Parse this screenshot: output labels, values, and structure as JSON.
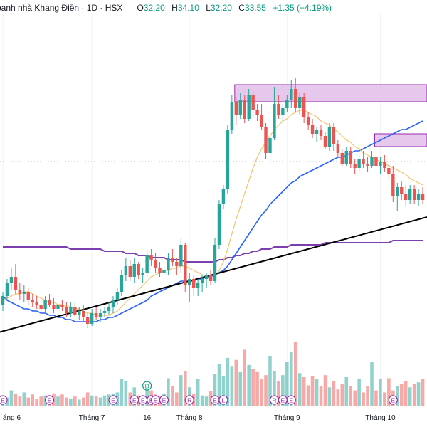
{
  "header": {
    "title": "oanh nhà Khang Điền · 1D · HSX",
    "open_label": "O",
    "open": "32.20",
    "high_label": "H",
    "high": "34.10",
    "low_label": "L",
    "low": "32.20",
    "close_label": "C",
    "close": "33.55",
    "change": "+1.35 (+4.19%)"
  },
  "colors": {
    "up": "#26a69a",
    "down": "#ef5350",
    "ma_short": "#f5c26b",
    "ma_mid": "#2962ff",
    "ma_long": "#7b3fb0",
    "trendline": "#000000",
    "zone": "#e1bee7",
    "zone_border": "#9c27b0"
  },
  "chart_data": {
    "type": "candlestick",
    "title": "oanh nhà Khang Điền · 1D · HSX",
    "ylim": [
      20,
      38
    ],
    "x_tick_labels": [
      {
        "i": 0,
        "label": "áng 6"
      },
      {
        "i": 21,
        "label": "Tháng 7"
      },
      {
        "i": 34,
        "label": "16"
      },
      {
        "i": 44,
        "label": "Tháng 8"
      },
      {
        "i": 67,
        "label": "Tháng 9"
      },
      {
        "i": 89,
        "label": "Tháng 10"
      }
    ],
    "ohlc": [
      [
        24.4,
        25.0,
        24.1,
        24.8
      ],
      [
        24.8,
        25.6,
        24.6,
        25.4
      ],
      [
        25.4,
        26.1,
        25.1,
        25.7
      ],
      [
        25.7,
        26.3,
        24.9,
        25.1
      ],
      [
        25.1,
        25.4,
        24.6,
        24.9
      ],
      [
        24.9,
        25.3,
        24.5,
        25.0
      ],
      [
        25.0,
        25.2,
        24.4,
        24.6
      ],
      [
        24.6,
        24.9,
        24.3,
        24.5
      ],
      [
        24.5,
        24.8,
        24.2,
        24.4
      ],
      [
        24.4,
        24.6,
        24.1,
        24.2
      ],
      [
        24.2,
        24.8,
        24.0,
        24.6
      ],
      [
        24.6,
        24.9,
        24.3,
        24.4
      ],
      [
        24.4,
        24.7,
        24.0,
        24.2
      ],
      [
        24.2,
        24.5,
        23.9,
        24.4
      ],
      [
        24.4,
        24.6,
        24.1,
        24.3
      ],
      [
        24.3,
        24.5,
        23.8,
        24.0
      ],
      [
        24.0,
        24.5,
        23.8,
        24.3
      ],
      [
        24.3,
        24.5,
        23.8,
        23.9
      ],
      [
        23.9,
        24.3,
        23.7,
        24.1
      ],
      [
        24.1,
        24.4,
        23.6,
        23.8
      ],
      [
        23.8,
        24.0,
        23.3,
        23.5
      ],
      [
        23.5,
        24.2,
        23.4,
        24.0
      ],
      [
        24.0,
        24.3,
        23.7,
        23.8
      ],
      [
        23.8,
        24.2,
        23.6,
        24.0
      ],
      [
        24.0,
        24.3,
        23.8,
        24.1
      ],
      [
        24.1,
        24.5,
        23.9,
        24.3
      ],
      [
        24.3,
        24.8,
        24.0,
        24.6
      ],
      [
        24.6,
        25.2,
        24.4,
        25.0
      ],
      [
        25.0,
        26.0,
        24.8,
        25.8
      ],
      [
        25.8,
        26.6,
        25.5,
        26.2
      ],
      [
        26.2,
        26.5,
        25.5,
        25.7
      ],
      [
        25.7,
        26.6,
        25.4,
        26.3
      ],
      [
        26.3,
        26.4,
        25.6,
        25.8
      ],
      [
        25.8,
        26.1,
        25.4,
        25.9
      ],
      [
        25.9,
        26.9,
        25.7,
        26.7
      ],
      [
        26.7,
        27.0,
        26.2,
        26.5
      ],
      [
        26.5,
        26.8,
        25.9,
        26.1
      ],
      [
        26.1,
        26.4,
        25.7,
        25.9
      ],
      [
        25.9,
        26.3,
        25.5,
        26.0
      ],
      [
        26.0,
        26.8,
        25.8,
        26.6
      ],
      [
        26.6,
        27.0,
        26.2,
        26.4
      ],
      [
        26.4,
        26.6,
        25.8,
        26.2
      ],
      [
        26.2,
        27.5,
        25.9,
        27.2
      ],
      [
        27.2,
        27.3,
        25.0,
        25.3
      ],
      [
        25.3,
        25.9,
        24.5,
        25.6
      ],
      [
        25.6,
        25.8,
        24.8,
        25.2
      ],
      [
        25.2,
        25.6,
        24.8,
        25.4
      ],
      [
        25.4,
        25.8,
        25.0,
        25.6
      ],
      [
        25.6,
        25.9,
        25.2,
        25.8
      ],
      [
        25.8,
        26.0,
        25.3,
        25.5
      ],
      [
        25.5,
        27.5,
        25.4,
        27.2
      ],
      [
        27.2,
        29.3,
        27.0,
        29.1
      ],
      [
        29.1,
        30.0,
        28.9,
        29.8
      ],
      [
        29.8,
        32.8,
        29.6,
        32.6
      ],
      [
        32.6,
        34.2,
        32.4,
        33.9
      ],
      [
        33.9,
        34.1,
        32.8,
        33.3
      ],
      [
        33.3,
        34.3,
        33.1,
        34.0
      ],
      [
        34.0,
        34.2,
        32.9,
        33.1
      ],
      [
        33.1,
        34.5,
        33.0,
        34.2
      ],
      [
        34.2,
        34.4,
        33.2,
        33.5
      ],
      [
        33.5,
        33.8,
        33.0,
        33.3
      ],
      [
        33.3,
        33.8,
        32.6,
        32.7
      ],
      [
        32.7,
        32.9,
        31.2,
        31.5
      ],
      [
        31.5,
        32.4,
        31.0,
        32.2
      ],
      [
        32.2,
        34.6,
        32.1,
        33.8
      ],
      [
        33.8,
        34.2,
        33.1,
        33.3
      ],
      [
        33.3,
        33.8,
        32.9,
        33.6
      ],
      [
        33.6,
        34.2,
        33.4,
        34.0
      ],
      [
        34.0,
        34.9,
        33.6,
        34.5
      ],
      [
        34.5,
        35.0,
        33.4,
        33.6
      ],
      [
        33.6,
        34.3,
        33.3,
        34.1
      ],
      [
        34.1,
        34.3,
        32.9,
        33.2
      ],
      [
        33.2,
        33.4,
        32.6,
        32.8
      ],
      [
        32.8,
        33.1,
        32.2,
        32.4
      ],
      [
        32.4,
        32.7,
        32.0,
        32.6
      ],
      [
        32.6,
        32.8,
        32.1,
        32.3
      ],
      [
        32.3,
        32.5,
        31.7,
        31.8
      ],
      [
        31.8,
        32.9,
        31.6,
        32.7
      ],
      [
        32.7,
        32.9,
        31.6,
        31.9
      ],
      [
        31.9,
        32.1,
        31.3,
        31.5
      ],
      [
        31.5,
        31.7,
        30.9,
        31.0
      ],
      [
        31.0,
        31.8,
        30.9,
        31.6
      ],
      [
        31.6,
        31.8,
        30.8,
        31.0
      ],
      [
        31.0,
        31.2,
        30.5,
        30.8
      ],
      [
        30.8,
        31.4,
        30.6,
        31.2
      ],
      [
        31.2,
        31.6,
        30.8,
        31.0
      ],
      [
        31.0,
        31.3,
        30.6,
        30.9
      ],
      [
        30.9,
        31.6,
        30.8,
        31.3
      ],
      [
        31.3,
        31.6,
        30.7,
        30.9
      ],
      [
        30.9,
        31.3,
        30.5,
        31.1
      ],
      [
        31.1,
        31.4,
        30.6,
        30.8
      ],
      [
        30.8,
        31.0,
        30.3,
        30.5
      ],
      [
        30.5,
        30.9,
        29.2,
        29.5
      ],
      [
        29.5,
        30.1,
        28.8,
        29.9
      ],
      [
        29.9,
        30.2,
        29.3,
        29.6
      ],
      [
        29.6,
        30.0,
        29.0,
        29.3
      ],
      [
        29.3,
        30.0,
        29.1,
        29.8
      ],
      [
        29.8,
        30.0,
        29.1,
        29.3
      ],
      [
        29.3,
        29.8,
        29.0,
        29.6
      ],
      [
        29.6,
        29.9,
        29.1,
        29.3
      ]
    ],
    "volume": [
      1.0,
      0.8,
      1.5,
      1.2,
      0.9,
      1.3,
      0.8,
      1.1,
      0.7,
      0.9,
      1.0,
      0.8,
      1.2,
      0.9,
      1.1,
      0.8,
      0.7,
      0.9,
      0.6,
      0.8,
      1.3,
      1.0,
      0.9,
      0.8,
      1.0,
      1.1,
      1.2,
      1.3,
      2.6,
      2.4,
      1.3,
      1.8,
      1.0,
      0.9,
      2.0,
      1.5,
      1.1,
      0.9,
      1.2,
      2.7,
      1.9,
      1.3,
      3.0,
      3.4,
      1.8,
      1.2,
      2.6,
      1.0,
      0.9,
      1.4,
      3.1,
      4.1,
      2.9,
      4.7,
      3.9,
      4.5,
      3.3,
      5.5,
      4.0,
      3.6,
      3.3,
      2.6,
      3.0,
      4.9,
      3.4,
      2.4,
      3.0,
      4.3,
      5.3,
      6.3,
      3.2,
      2.8,
      2.0,
      2.9,
      2.6,
      1.9,
      3.0,
      1.8,
      2.4,
      1.6,
      2.1,
      2.8,
      1.9,
      1.5,
      2.6,
      1.3,
      1.9,
      4.3,
      1.5,
      2.6,
      1.3,
      2.7,
      1.5,
      1.9,
      2.1,
      2.4,
      1.8,
      2.1,
      2.3,
      2.6
    ],
    "ma_short": [
      24.6,
      24.7,
      24.8,
      24.9,
      24.9,
      25.0,
      25.0,
      24.9,
      24.8,
      24.7,
      24.6,
      24.5,
      24.5,
      24.4,
      24.4,
      24.3,
      24.3,
      24.2,
      24.2,
      24.1,
      24.0,
      24.0,
      23.9,
      23.9,
      23.9,
      23.9,
      24.0,
      24.1,
      24.3,
      24.5,
      24.7,
      24.9,
      25.1,
      25.3,
      25.5,
      25.7,
      25.8,
      25.9,
      26.0,
      26.0,
      26.1,
      26.1,
      26.2,
      26.2,
      26.1,
      26.0,
      25.9,
      25.8,
      25.7,
      25.6,
      25.7,
      26.0,
      26.4,
      27.0,
      27.7,
      28.4,
      29.0,
      29.6,
      30.2,
      30.8,
      31.3,
      31.7,
      32.0,
      32.3,
      32.6,
      32.8,
      33.0,
      33.1,
      33.3,
      33.4,
      33.5,
      33.5,
      33.4,
      33.3,
      33.2,
      33.0,
      32.9,
      32.8,
      32.6,
      32.5,
      32.3,
      32.1,
      32.0,
      31.8,
      31.7,
      31.5,
      31.4,
      31.3,
      31.2,
      31.1,
      31.0,
      30.9,
      30.8,
      30.7,
      30.6,
      30.5,
      30.3,
      30.2,
      30.1,
      30.0
    ],
    "ma_mid": [
      24.8,
      24.6,
      24.5,
      24.4,
      24.3,
      24.2,
      24.2,
      24.1,
      24.1,
      24.0,
      24.0,
      23.9,
      23.9,
      23.8,
      23.8,
      23.7,
      23.7,
      23.6,
      23.6,
      23.6,
      23.6,
      23.6,
      23.6,
      23.7,
      23.7,
      23.8,
      23.8,
      23.9,
      24.0,
      24.1,
      24.2,
      24.3,
      24.4,
      24.5,
      24.6,
      24.8,
      24.9,
      25.0,
      25.1,
      25.2,
      25.3,
      25.4,
      25.5,
      25.5,
      25.5,
      25.5,
      25.6,
      25.6,
      25.7,
      25.7,
      25.8,
      25.9,
      26.0,
      26.2,
      26.5,
      26.8,
      27.1,
      27.4,
      27.7,
      28.0,
      28.3,
      28.6,
      28.8,
      29.1,
      29.3,
      29.5,
      29.7,
      29.9,
      30.1,
      30.2,
      30.4,
      30.5,
      30.6,
      30.7,
      30.8,
      30.9,
      31.0,
      31.1,
      31.2,
      31.3,
      31.3,
      31.4,
      31.5,
      31.6,
      31.6,
      31.7,
      31.8,
      31.9,
      32.0,
      32.1,
      32.2,
      32.3,
      32.4,
      32.5,
      32.6,
      32.6,
      32.7,
      32.8,
      32.9,
      33.0
    ],
    "ma_long": [
      27.1,
      27.1,
      27.1,
      27.1,
      27.1,
      27.1,
      27.1,
      27.1,
      27.1,
      27.1,
      27.1,
      27.1,
      27.1,
      27.1,
      27.1,
      27.1,
      27.0,
      27.0,
      27.0,
      27.0,
      27.0,
      27.0,
      27.0,
      27.0,
      26.9,
      26.9,
      26.9,
      26.9,
      26.9,
      26.8,
      26.8,
      26.8,
      26.7,
      26.7,
      26.7,
      26.6,
      26.6,
      26.6,
      26.6,
      26.5,
      26.5,
      26.5,
      26.5,
      26.4,
      26.4,
      26.4,
      26.4,
      26.4,
      26.4,
      26.4,
      26.4,
      26.5,
      26.5,
      26.6,
      26.6,
      26.7,
      26.7,
      26.8,
      26.8,
      26.9,
      26.9,
      27.0,
      27.0,
      27.0,
      27.1,
      27.1,
      27.1,
      27.1,
      27.2,
      27.2,
      27.2,
      27.2,
      27.2,
      27.2,
      27.2,
      27.2,
      27.3,
      27.3,
      27.3,
      27.3,
      27.3,
      27.3,
      27.3,
      27.3,
      27.3,
      27.3,
      27.3,
      27.3,
      27.3,
      27.3,
      27.3,
      27.3,
      27.4,
      27.4,
      27.4,
      27.4,
      27.4,
      27.4,
      27.4,
      27.4
    ],
    "trendline": {
      "x1": -1,
      "y1": 23.1,
      "x2": 100,
      "y2": 28.5
    },
    "zones": [
      {
        "i_start": 55,
        "i_end": 100,
        "y_low": 33.9,
        "y_high": 34.7
      },
      {
        "i_start": 88,
        "i_end": 100,
        "y_low": 31.8,
        "y_high": 32.4
      }
    ],
    "price_line": 31.1,
    "events": [
      {
        "i": 0,
        "label": "E"
      },
      {
        "i": 11,
        "label": "E"
      },
      {
        "i": 26,
        "label": "E"
      },
      {
        "i": 31,
        "label": "E"
      },
      {
        "i": 33,
        "label": "E"
      },
      {
        "i": 35,
        "label": "E"
      },
      {
        "i": 36,
        "label": "E"
      },
      {
        "i": 38,
        "label": "E"
      },
      {
        "i": 44,
        "label": "R"
      },
      {
        "i": 50,
        "label": "E"
      },
      {
        "i": 52,
        "label": "L"
      },
      {
        "i": 64,
        "label": "R"
      },
      {
        "i": 66,
        "label": "E"
      },
      {
        "i": 68,
        "label": "E"
      },
      {
        "i": 92,
        "label": "E"
      }
    ],
    "dividend_marker": {
      "i": 34,
      "label": "D"
    }
  }
}
